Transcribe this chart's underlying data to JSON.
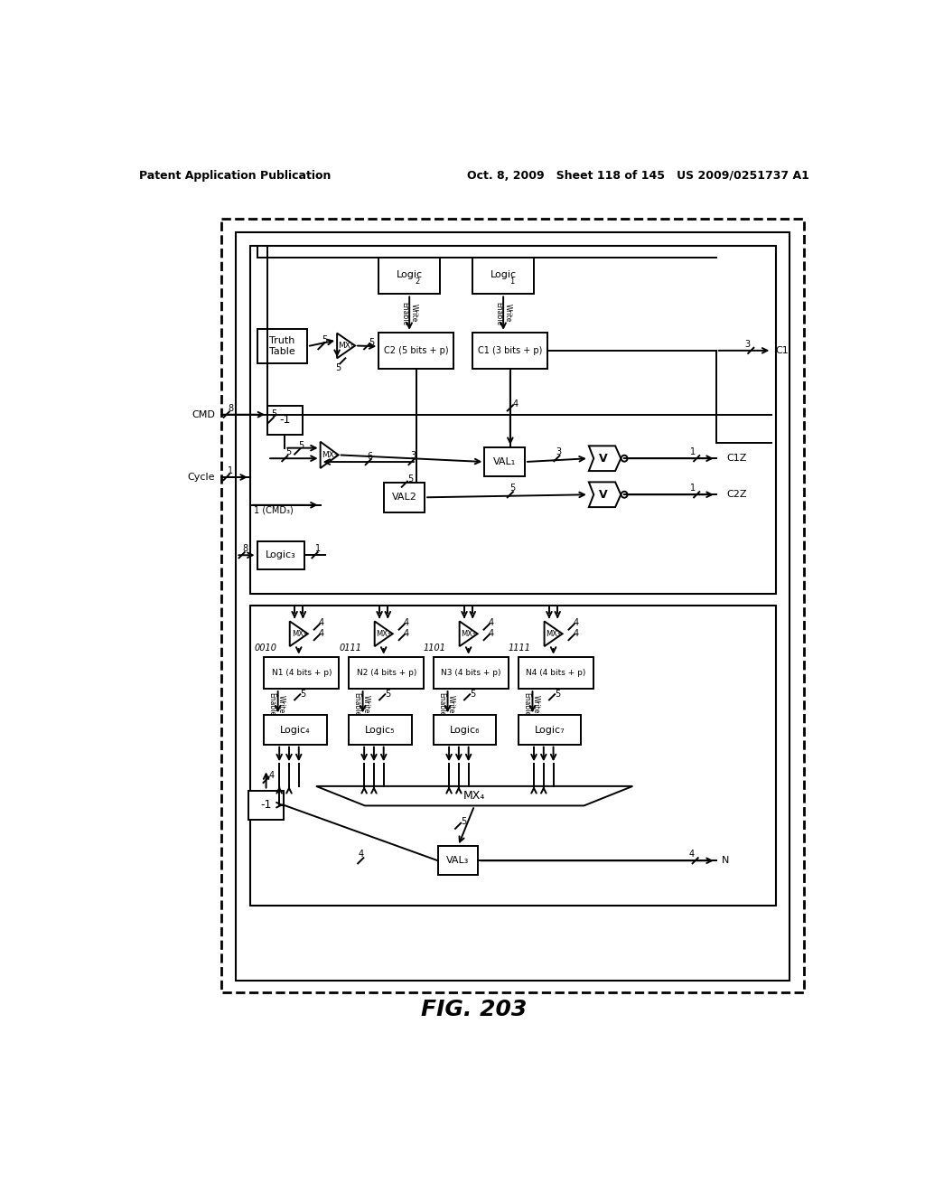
{
  "header_left": "Patent Application Publication",
  "header_right": "Oct. 8, 2009   Sheet 118 of 145   US 2009/0251737 A1",
  "fig_label": "FIG. 203"
}
